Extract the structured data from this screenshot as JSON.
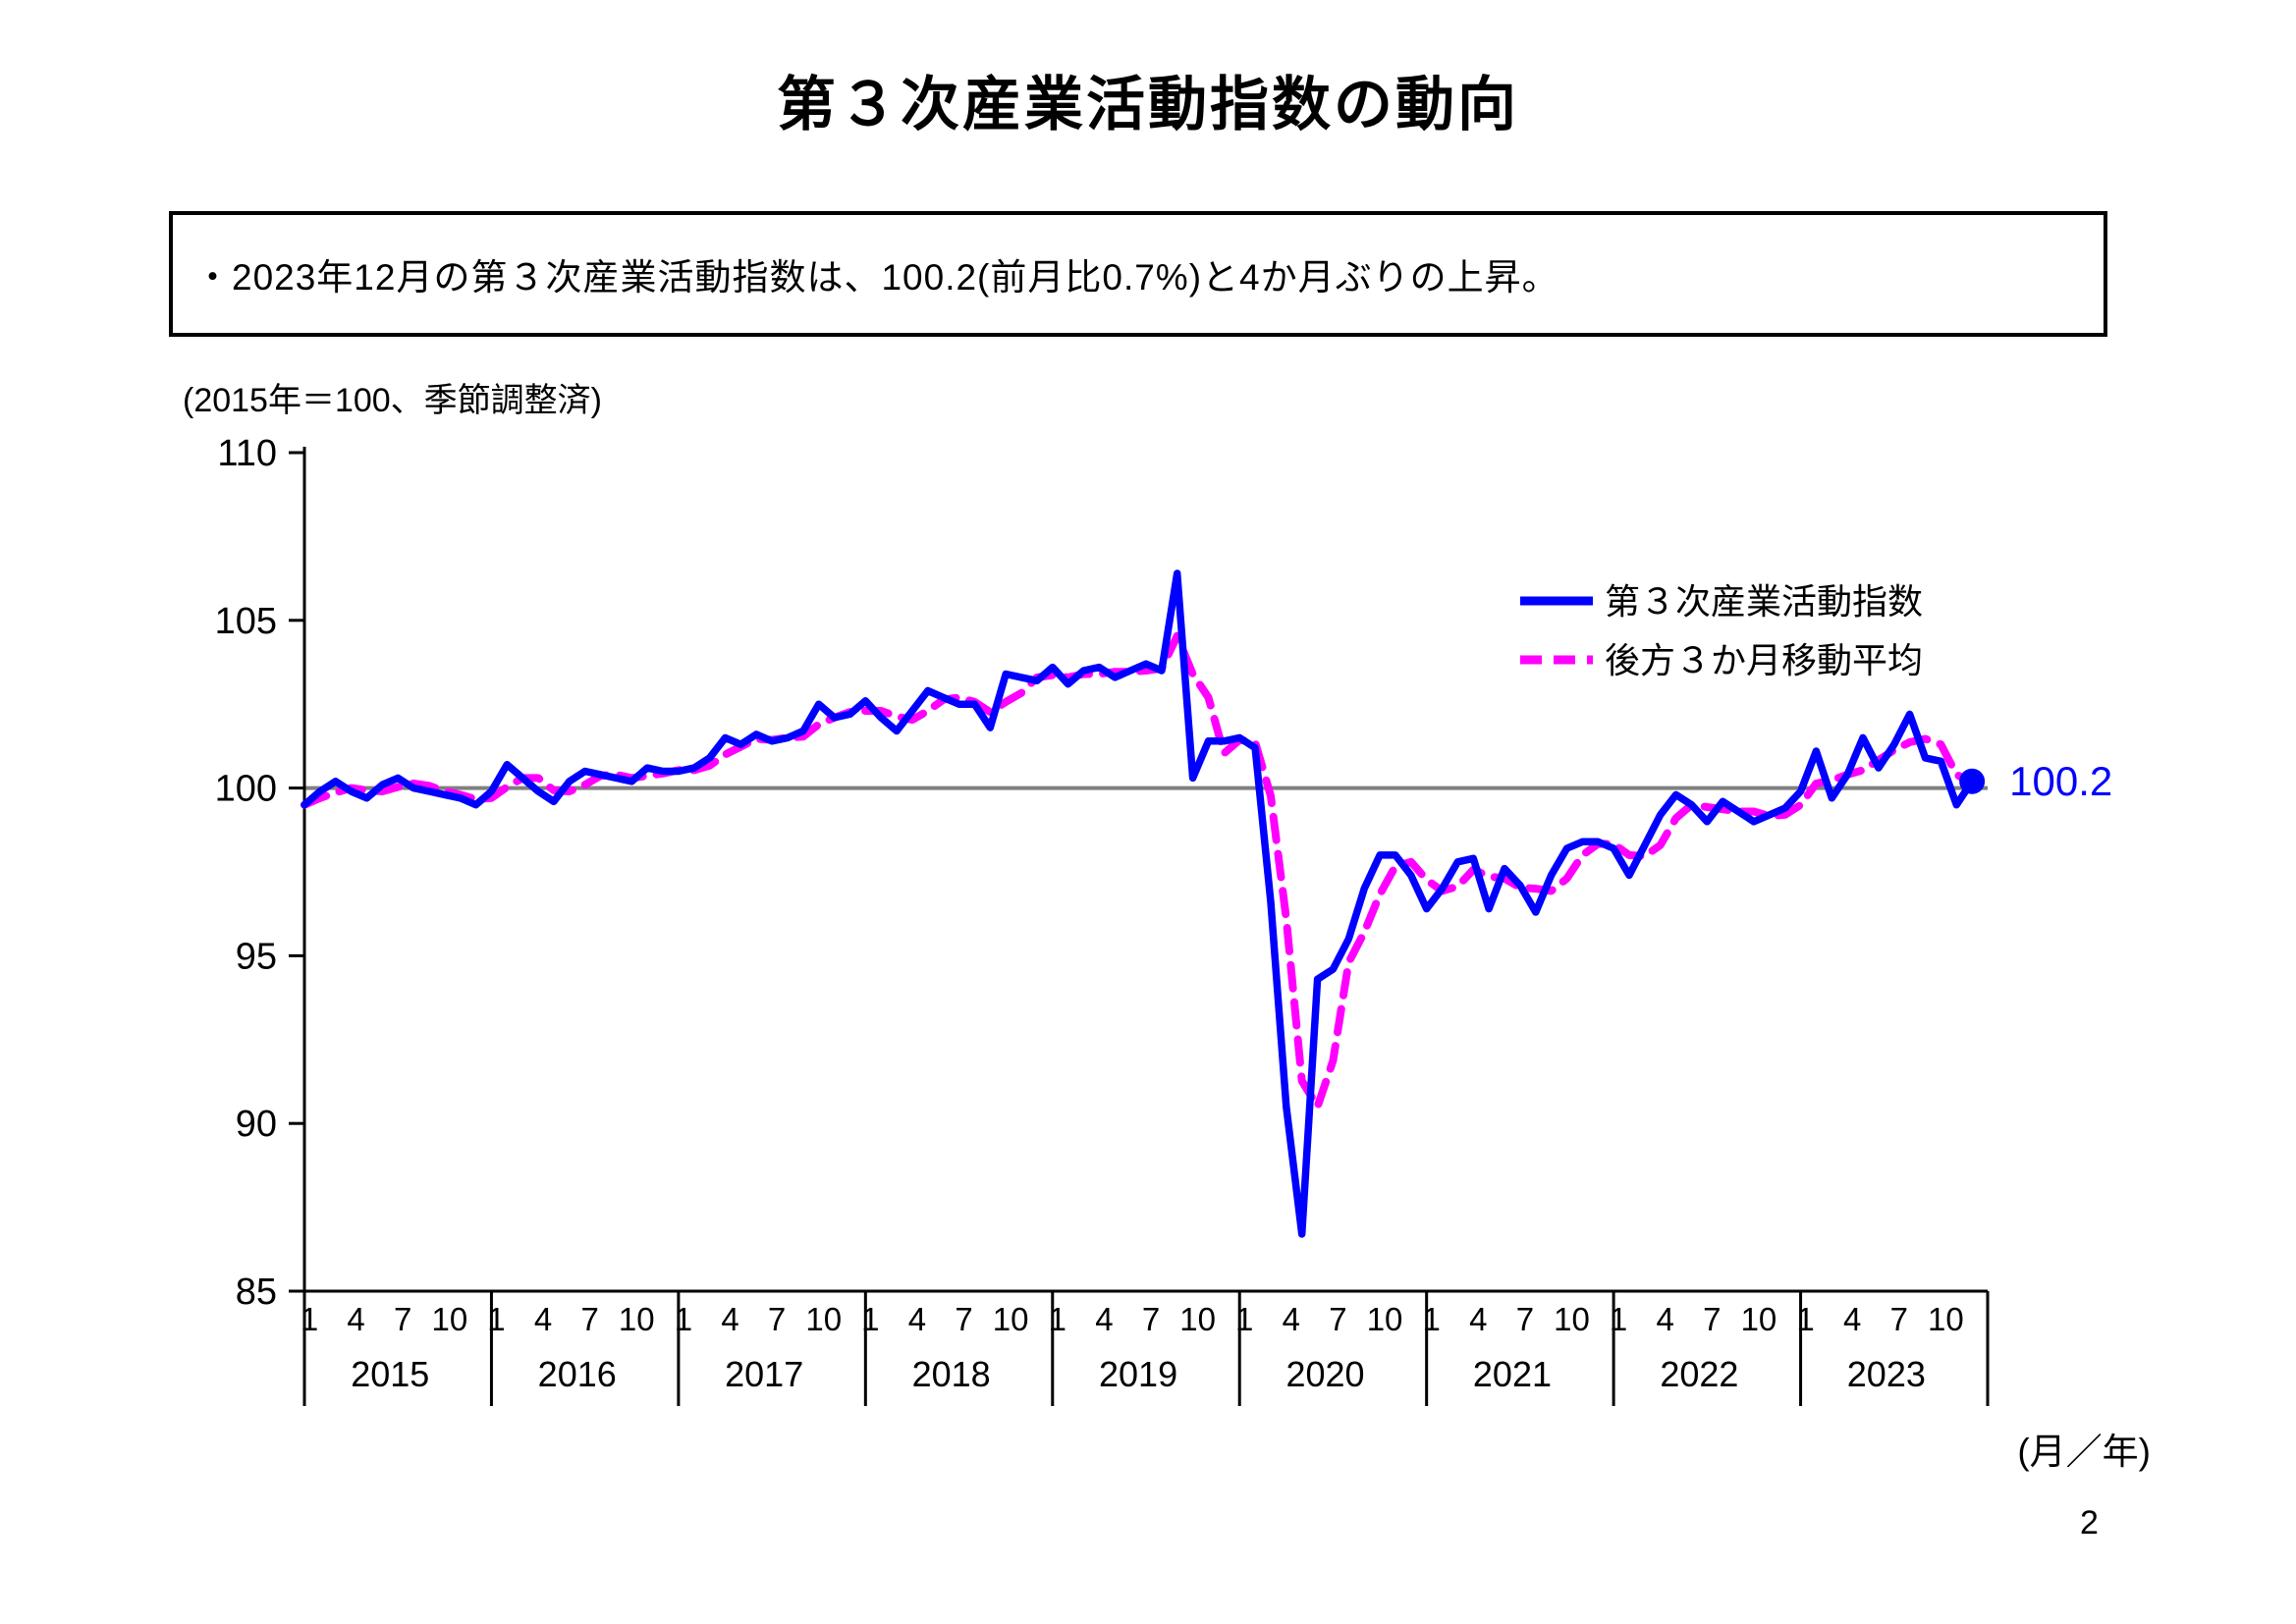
{
  "page": {
    "title": "第３次産業活動指数の動向",
    "page_number": "2"
  },
  "summary_box": {
    "text": "・2023年12月の第３次産業活動指数は、100.2(前月比0.7%)と4か月ぶりの上昇。"
  },
  "chart": {
    "axis_note": "(2015年＝100、季節調整済)",
    "x_unit_label": "(月／年)",
    "end_annotation": "100.2",
    "colors": {
      "index_line": "#0000ff",
      "moving_average_line": "#ff00ff",
      "reference_line": "#808080",
      "axis": "#000000"
    },
    "legend": [
      {
        "label": "第３次産業活動指数",
        "color": "#0000ff",
        "style": "solid"
      },
      {
        "label": "後方３か月移動平均",
        "color": "#ff00ff",
        "style": "dashed"
      }
    ]
  },
  "chart_data": {
    "type": "line",
    "title": "第３次産業活動指数の動向",
    "ylabel": "(2015年＝100、季節調整済)",
    "ylim": [
      85,
      110
    ],
    "y_ticks": [
      85,
      90,
      95,
      100,
      105,
      110
    ],
    "reference_line_y": 100,
    "grid": false,
    "legend_position": "upper right inside plot",
    "x_years": [
      2015,
      2016,
      2017,
      2018,
      2019,
      2020,
      2021,
      2022,
      2023
    ],
    "x_month_ticks": [
      1,
      4,
      7,
      10
    ],
    "x_axis_label": "(月／年)",
    "series": [
      {
        "name": "第３次産業活動指数",
        "color": "#0000ff",
        "style": "solid",
        "monthly_values_by_year": {
          "2015": [
            99.5,
            99.9,
            100.2,
            99.9,
            99.7,
            100.1,
            100.3,
            100.0,
            99.9,
            99.8,
            99.7,
            99.5
          ],
          "2016": [
            99.9,
            100.7,
            100.3,
            99.9,
            99.6,
            100.2,
            100.5,
            100.4,
            100.3,
            100.2,
            100.6,
            100.5
          ],
          "2017": [
            100.5,
            100.6,
            100.9,
            101.5,
            101.3,
            101.6,
            101.4,
            101.5,
            101.7,
            102.5,
            102.1,
            102.2
          ],
          "2018": [
            102.6,
            102.1,
            101.7,
            102.3,
            102.9,
            102.7,
            102.5,
            102.5,
            101.8,
            103.4,
            103.3,
            103.2
          ],
          "2019": [
            103.6,
            103.1,
            103.5,
            103.6,
            103.3,
            103.5,
            103.7,
            103.5,
            106.4,
            100.3,
            101.4,
            101.4
          ],
          "2020": [
            101.5,
            101.2,
            96.6,
            90.5,
            86.7,
            94.3,
            94.6,
            95.5,
            97.0,
            98.0,
            98.0,
            97.4
          ],
          "2021": [
            96.4,
            97.0,
            97.8,
            97.9,
            96.4,
            97.6,
            97.1,
            96.3,
            97.4,
            98.2,
            98.4,
            98.4
          ],
          "2022": [
            98.2,
            97.4,
            98.3,
            99.2,
            99.8,
            99.5,
            99.0,
            99.6,
            99.3,
            99.0,
            99.2,
            99.4
          ],
          "2023": [
            99.9,
            101.1,
            99.7,
            100.4,
            101.5,
            100.6,
            101.3,
            102.2,
            100.9,
            100.8,
            99.5,
            100.2
          ]
        }
      },
      {
        "name": "後方３か月移動平均",
        "color": "#ff00ff",
        "style": "dashed",
        "derived_from": "trailing 3-month moving average of 第３次産業活動指数"
      }
    ],
    "last_point": {
      "year": 2023,
      "month": 12,
      "value": 100.2,
      "label": "100.2"
    }
  }
}
